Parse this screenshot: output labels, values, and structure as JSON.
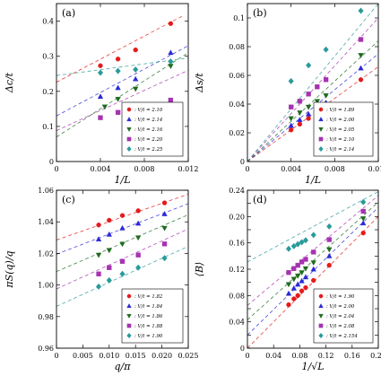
{
  "chart_data": [
    {
      "panel": "(a)",
      "type": "scatter",
      "xlabel": "1/L",
      "ylabel": "Δc/t",
      "xlim": [
        0,
        0.012
      ],
      "ylim": [
        0,
        0.45
      ],
      "xticks": [
        0,
        0.004,
        0.008,
        0.012
      ],
      "xtick_labels": [
        "0",
        "0.004",
        "0.008",
        "0.012"
      ],
      "yticks": [
        0,
        0.1,
        0.2,
        0.3,
        0.4
      ],
      "ytick_labels": [
        "0",
        "0.1",
        "0.2",
        "0.3",
        "0.4"
      ],
      "legend_position": "bottom-right",
      "grid": false,
      "fit_lines": "dashed, extrapolated to 1/L = 0",
      "series": [
        {
          "name": ": V/t = 2.10",
          "marker": "circle",
          "color": "#e41a1c",
          "x": [
            0.004,
            0.0056,
            0.0072,
            0.0104
          ],
          "y": [
            0.273,
            0.292,
            0.318,
            0.393
          ],
          "fit": [
            [
              0,
              0.226
            ],
            [
              0.0115,
              0.415
            ]
          ]
        },
        {
          "name": ": V/t = 2.14",
          "marker": "triangle-up",
          "color": "#2a2ad6",
          "x": [
            0.004,
            0.0056,
            0.0072,
            0.0104
          ],
          "y": [
            0.185,
            0.21,
            0.235,
            0.31
          ],
          "fit": [
            [
              0,
              0.13
            ],
            [
              0.012,
              0.33
            ]
          ]
        },
        {
          "name": ": V/t = 2.16",
          "marker": "triangle-down",
          "color": "#1f6b1f",
          "x": [
            0.0044,
            0.0056,
            0.0072,
            0.0104
          ],
          "y": [
            0.156,
            0.178,
            0.207,
            0.272
          ],
          "fit": [
            [
              0,
              0.07
            ],
            [
              0.012,
              0.31
            ]
          ]
        },
        {
          "name": ": V/t = 2.20",
          "marker": "square",
          "color": "#a533b0",
          "x": [
            0.004,
            0.0056,
            0.0072,
            0.0104
          ],
          "y": [
            0.125,
            0.14,
            0.15,
            0.175
          ],
          "fit": [
            [
              0,
              0.088
            ],
            [
              0.012,
              0.26
            ]
          ]
        },
        {
          "name": ": V/t = 2.25",
          "marker": "diamond",
          "color": "#2a9a9a",
          "x": [
            0.004,
            0.0056,
            0.0072,
            0.0104
          ],
          "y": [
            0.253,
            0.258,
            0.262,
            0.285
          ],
          "fit": [
            [
              0,
              0.245
            ],
            [
              0.012,
              0.295
            ]
          ]
        }
      ]
    },
    {
      "panel": "(b)",
      "type": "scatter",
      "xlabel": "1/L",
      "ylabel": "Δs/t",
      "xlim": [
        0,
        0.012
      ],
      "ylim": [
        0,
        0.11
      ],
      "xticks": [
        0,
        0.004,
        0.008,
        0.012
      ],
      "xtick_labels": [
        "0",
        "0.004",
        "0.008",
        "0.012"
      ],
      "yticks": [
        0,
        0.02,
        0.04,
        0.06,
        0.08,
        0.1
      ],
      "ytick_labels": [
        "0",
        "0.02",
        "0.04",
        "0.06",
        "0.08",
        "0.1"
      ],
      "legend_position": "bottom-right",
      "grid": false,
      "fit_lines": "dashed, extrapolated to 1/L = 0",
      "series": [
        {
          "name": ": V/t = 1.89",
          "marker": "circle",
          "color": "#e41a1c",
          "x": [
            0.004,
            0.0048,
            0.0056,
            0.0064,
            0.0072,
            0.0104
          ],
          "y": [
            0.022,
            0.026,
            0.03,
            0.034,
            0.038,
            0.057
          ],
          "fit": [
            [
              0,
              0.0
            ],
            [
              0.012,
              0.066
            ]
          ]
        },
        {
          "name": ": V/t = 2.00",
          "marker": "triangle-up",
          "color": "#2a2ad6",
          "x": [
            0.004,
            0.0048,
            0.0056,
            0.0064,
            0.0072,
            0.0104
          ],
          "y": [
            0.025,
            0.029,
            0.033,
            0.037,
            0.041,
            0.065
          ],
          "fit": [
            [
              0,
              0.0
            ],
            [
              0.012,
              0.075
            ]
          ]
        },
        {
          "name": ": V/t = 2.05",
          "marker": "triangle-down",
          "color": "#1f6b1f",
          "x": [
            0.004,
            0.0048,
            0.0056,
            0.0064,
            0.0072,
            0.0104
          ],
          "y": [
            0.03,
            0.034,
            0.038,
            0.042,
            0.046,
            0.074
          ],
          "fit": [
            [
              0,
              0.0
            ],
            [
              0.012,
              0.084
            ]
          ]
        },
        {
          "name": ": V/t = 2.10",
          "marker": "square",
          "color": "#a533b0",
          "x": [
            0.004,
            0.0048,
            0.0056,
            0.0064,
            0.0072,
            0.0104
          ],
          "y": [
            0.038,
            0.042,
            0.047,
            0.052,
            0.057,
            0.085
          ],
          "fit": [
            [
              0,
              0.0
            ],
            [
              0.012,
              0.1
            ]
          ]
        },
        {
          "name": ": V/t = 2.14",
          "marker": "diamond",
          "color": "#2a9a9a",
          "x": [
            0.004,
            0.0056,
            0.0072,
            0.0104
          ],
          "y": [
            0.056,
            0.067,
            0.078,
            0.105
          ],
          "fit": [
            [
              0,
              0.0
            ],
            [
              0.012,
              0.11
            ]
          ]
        }
      ]
    },
    {
      "panel": "(c)",
      "type": "scatter",
      "xlabel": "q/π",
      "ylabel": "πS(q)/q",
      "xlim": [
        0,
        0.025
      ],
      "ylim": [
        0.96,
        1.06
      ],
      "xticks": [
        0,
        0.005,
        0.01,
        0.015,
        0.02,
        0.025
      ],
      "xtick_labels": [
        "0",
        "0.005",
        "0.010",
        "0.015",
        "0.020",
        "0.025"
      ],
      "yticks": [
        0.96,
        0.98,
        1.0,
        1.02,
        1.04,
        1.06
      ],
      "ytick_labels": [
        "0.96",
        "0.98",
        "1.00",
        "1.02",
        "1.04",
        "1.06"
      ],
      "legend_position": "bottom-right",
      "grid": false,
      "fit_lines": "dashed, extrapolated to q = 0",
      "series": [
        {
          "name": ": V/t = 1.82",
          "marker": "circle",
          "color": "#e41a1c",
          "x": [
            0.008,
            0.01,
            0.0125,
            0.0155,
            0.0205
          ],
          "y": [
            1.038,
            1.041,
            1.044,
            1.047,
            1.052
          ],
          "fit": [
            [
              0,
              1.0285
            ],
            [
              0.025,
              1.0575
            ]
          ]
        },
        {
          "name": ": V/t = 1.84",
          "marker": "triangle-up",
          "color": "#2a2ad6",
          "x": [
            0.008,
            0.01,
            0.0125,
            0.0155,
            0.0205
          ],
          "y": [
            1.029,
            1.032,
            1.036,
            1.039,
            1.045
          ],
          "fit": [
            [
              0,
              1.0195
            ],
            [
              0.025,
              1.0515
            ]
          ]
        },
        {
          "name": ": V/t = 1.86",
          "marker": "triangle-down",
          "color": "#1f6b1f",
          "x": [
            0.008,
            0.01,
            0.0125,
            0.0155,
            0.0205
          ],
          "y": [
            1.019,
            1.022,
            1.026,
            1.03,
            1.036
          ],
          "fit": [
            [
              0,
              1.0085
            ],
            [
              0.025,
              1.0445
            ]
          ]
        },
        {
          "name": ": V/t = 1.88",
          "marker": "square",
          "color": "#a533b0",
          "x": [
            0.008,
            0.01,
            0.0125,
            0.0155,
            0.0205
          ],
          "y": [
            1.007,
            1.011,
            1.015,
            1.019,
            1.026
          ],
          "fit": [
            [
              0,
              0.9975
            ],
            [
              0.025,
              1.0355
            ]
          ]
        },
        {
          "name": ": V/t = 1.90",
          "marker": "diamond",
          "color": "#2a9a9a",
          "x": [
            0.008,
            0.01,
            0.0125,
            0.0155,
            0.0205
          ],
          "y": [
            0.999,
            1.003,
            1.007,
            1.011,
            1.017
          ],
          "fit": [
            [
              0,
              0.9865
            ],
            [
              0.025,
              1.0245
            ]
          ]
        }
      ]
    },
    {
      "panel": "(d)",
      "type": "scatter",
      "xlabel": "1/√L",
      "ylabel": "⟨B⟩",
      "xlim": [
        0,
        0.2
      ],
      "ylim": [
        0,
        0.24
      ],
      "xticks": [
        0,
        0.04,
        0.08,
        0.12,
        0.16,
        0.2
      ],
      "xtick_labels": [
        "0",
        "0.04",
        "0.08",
        "0.12",
        "0.16",
        "0.20"
      ],
      "yticks": [
        0,
        0.02,
        0.04,
        0.06,
        0.08,
        0.1,
        0.12,
        0.14,
        0.16,
        0.18,
        0.2,
        0.22,
        0.24
      ],
      "ytick_labels": [
        "0",
        "",
        "0.04",
        "",
        "0.08",
        "",
        "0.12",
        "",
        "0.16",
        "",
        "0.20",
        "",
        "0.24"
      ],
      "legend_position": "bottom-right",
      "grid": false,
      "fit_lines": "dashed, extrapolated to 1/√L = 0",
      "series": [
        {
          "name": ": V/t = 1.90",
          "marker": "circle",
          "color": "#e41a1c",
          "x": [
            0.063,
            0.071,
            0.077,
            0.083,
            0.089,
            0.101,
            0.125,
            0.177
          ],
          "y": [
            0.066,
            0.075,
            0.08,
            0.087,
            0.092,
            0.103,
            0.126,
            0.175
          ],
          "fit": [
            [
              0,
              0.0
            ],
            [
              0.2,
              0.2
            ]
          ]
        },
        {
          "name": ": V/t = 2.00",
          "marker": "triangle-up",
          "color": "#2a2ad6",
          "x": [
            0.063,
            0.071,
            0.077,
            0.083,
            0.089,
            0.101,
            0.125,
            0.177
          ],
          "y": [
            0.083,
            0.091,
            0.097,
            0.102,
            0.108,
            0.12,
            0.14,
            0.19
          ],
          "fit": [
            [
              0,
              0.02
            ],
            [
              0.2,
              0.214
            ]
          ]
        },
        {
          "name": ": V/t = 2.04",
          "marker": "triangle-down",
          "color": "#1f6b1f",
          "x": [
            0.063,
            0.071,
            0.077,
            0.083,
            0.089,
            0.101,
            0.125,
            0.177
          ],
          "y": [
            0.097,
            0.105,
            0.11,
            0.115,
            0.121,
            0.13,
            0.15,
            0.197
          ],
          "fit": [
            [
              0,
              0.043
            ],
            [
              0.2,
              0.222
            ]
          ]
        },
        {
          "name": ": V/t = 2.08",
          "marker": "square",
          "color": "#a533b0",
          "x": [
            0.063,
            0.071,
            0.077,
            0.083,
            0.089,
            0.101,
            0.125,
            0.177
          ],
          "y": [
            0.115,
            0.121,
            0.126,
            0.131,
            0.135,
            0.146,
            0.165,
            0.208
          ],
          "fit": [
            [
              0,
              0.065
            ],
            [
              0.2,
              0.232
            ]
          ]
        },
        {
          "name": ": V/t = 2.154",
          "marker": "diamond",
          "color": "#2a9a9a",
          "x": [
            0.063,
            0.071,
            0.077,
            0.083,
            0.089,
            0.101,
            0.125,
            0.177
          ],
          "y": [
            0.151,
            0.155,
            0.158,
            0.161,
            0.164,
            0.172,
            0.185,
            0.222
          ],
          "fit": [
            [
              0,
              0.131
            ],
            [
              0.2,
              0.238
            ]
          ]
        }
      ]
    }
  ]
}
